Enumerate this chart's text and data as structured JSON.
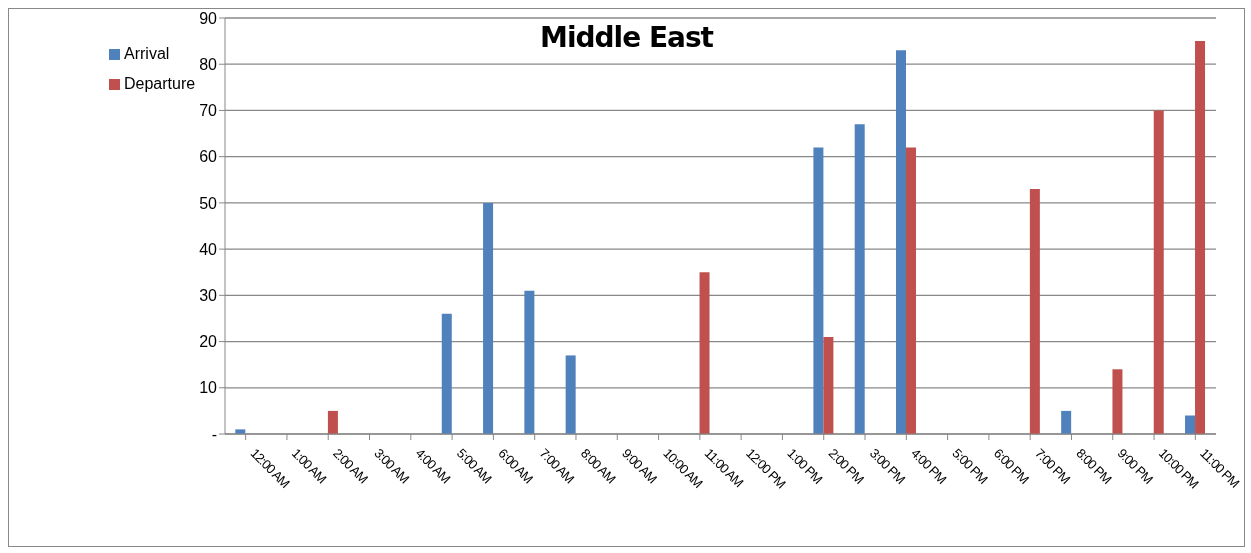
{
  "chart_data": {
    "type": "bar",
    "title": "Middle East",
    "categories": [
      "12:00 AM",
      "1:00 AM",
      "2:00 AM",
      "3:00 AM",
      "4:00 AM",
      "5:00 AM",
      "6:00 AM",
      "7:00 AM",
      "8:00 AM",
      "9:00 AM",
      "10:00 AM",
      "11:00 AM",
      "12:00 PM",
      "1:00 PM",
      "2:00 PM",
      "3:00 PM",
      "4:00 PM",
      "5:00 PM",
      "6:00 PM",
      "7:00 PM",
      "8:00 PM",
      "9:00 PM",
      "10:00 PM",
      "11:00 PM"
    ],
    "series": [
      {
        "name": "Arrival",
        "color": "#4f81bd",
        "values": [
          1,
          0,
          0,
          0,
          0,
          26,
          50,
          31,
          17,
          0,
          0,
          0,
          0,
          0,
          62,
          67,
          83,
          0,
          0,
          0,
          5,
          0,
          0,
          4
        ]
      },
      {
        "name": "Departure",
        "color": "#c0504d",
        "values": [
          0,
          0,
          5,
          0,
          0,
          0,
          0,
          0,
          0,
          0,
          0,
          35,
          0,
          0,
          21,
          0,
          62,
          0,
          0,
          53,
          0,
          14,
          70,
          85
        ]
      }
    ],
    "ylim": [
      0,
      90
    ],
    "yticks": [
      {
        "value": 0,
        "label": "-"
      },
      10,
      20,
      30,
      40,
      50,
      60,
      70,
      80,
      90
    ],
    "grid": "y",
    "legend": "top left"
  }
}
